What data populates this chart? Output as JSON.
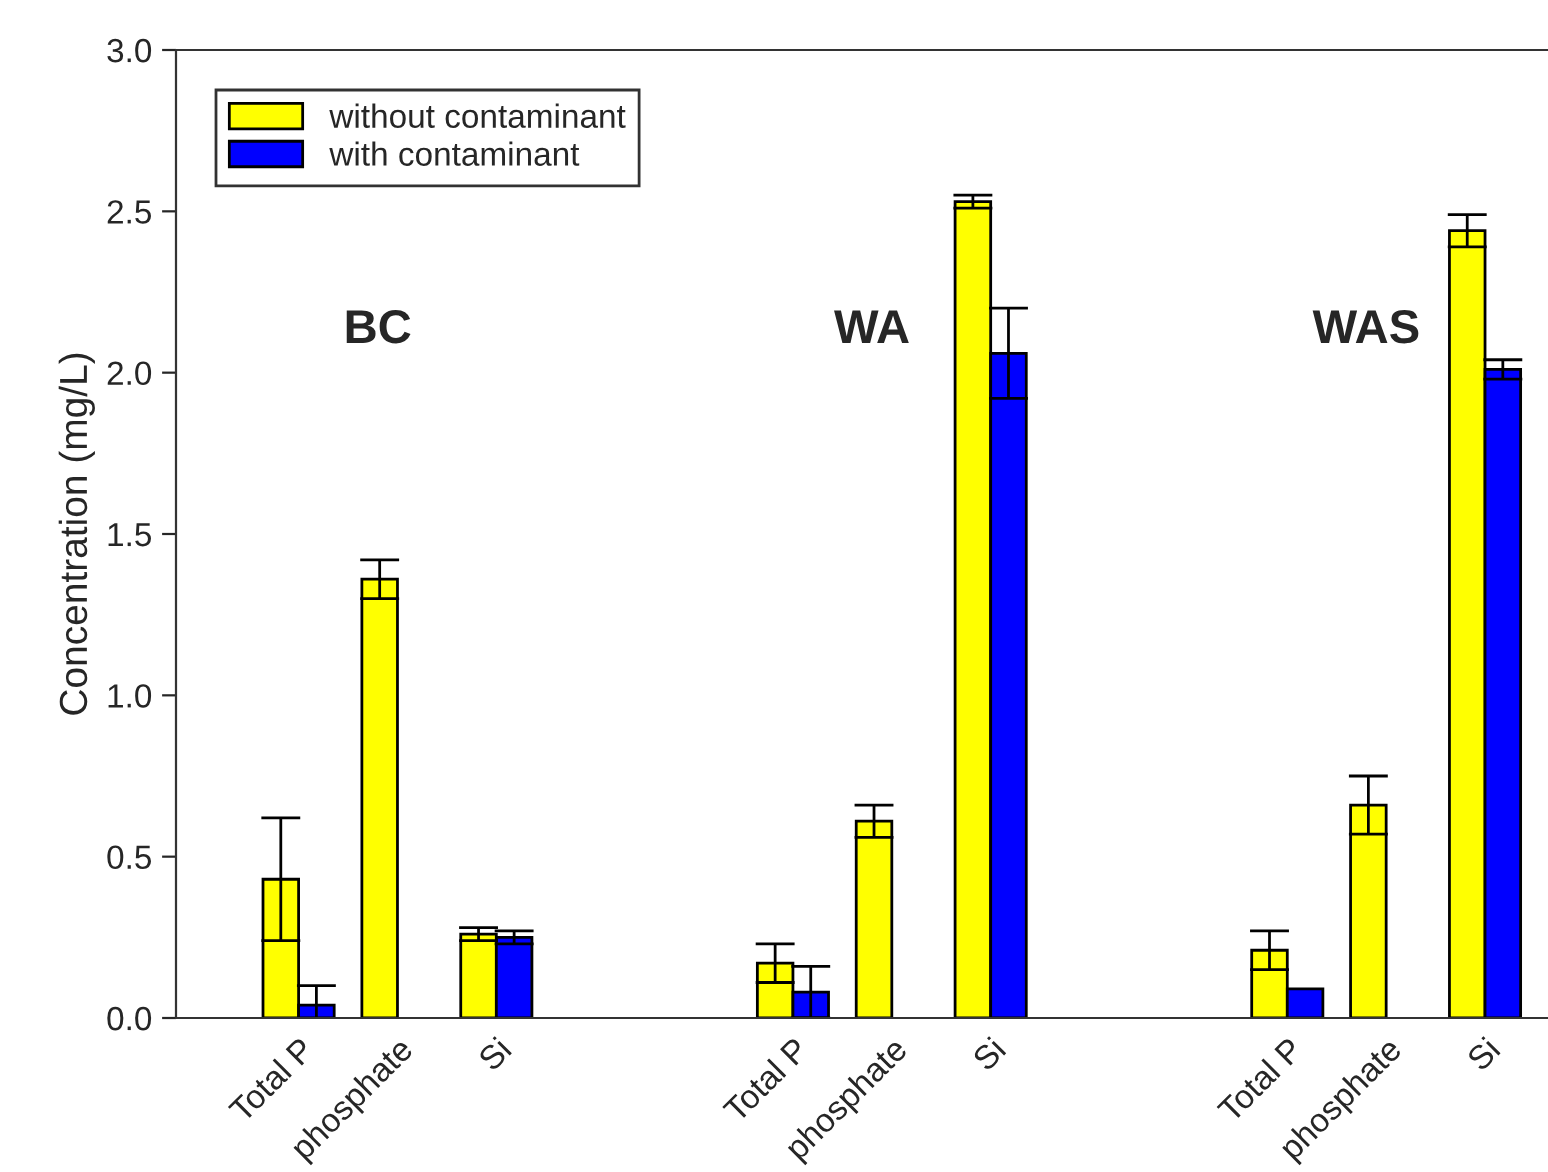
{
  "chart_data": {
    "type": "bar",
    "ylabel": "Concentration (mg/L)",
    "categories": [
      "Total P",
      "phosphate",
      "Si",
      null,
      null,
      "Total P",
      "phosphate",
      "Si",
      null,
      null,
      "Total P",
      "phosphate",
      "Si"
    ],
    "series": [
      {
        "name": "without contaminant",
        "color": "#ffff00",
        "values": [
          0.43,
          1.36,
          0.26,
          null,
          null,
          0.17,
          0.61,
          2.53,
          null,
          null,
          0.21,
          0.66,
          2.44
        ],
        "errors": [
          0.19,
          0.06,
          0.02,
          null,
          null,
          0.06,
          0.05,
          0.02,
          null,
          null,
          0.06,
          0.09,
          0.05
        ]
      },
      {
        "name": "with contaminant",
        "color": "#0000ff",
        "values": [
          0.04,
          null,
          0.25,
          null,
          null,
          0.08,
          null,
          2.06,
          null,
          null,
          0.09,
          null,
          2.01
        ],
        "errors": [
          0.06,
          null,
          0.02,
          null,
          null,
          0.08,
          null,
          0.14,
          null,
          null,
          null,
          null,
          0.03
        ]
      }
    ],
    "annotations": [
      "BC",
      "WA",
      "WAS"
    ],
    "ylim": [
      0,
      3.0
    ],
    "yticks": [
      {
        "value": 0,
        "label": "0.0"
      },
      {
        "value": 0.5,
        "label": "0.5"
      },
      {
        "value": 1.0,
        "label": "1.0"
      },
      {
        "value": 1.5,
        "label": "1.5"
      },
      {
        "value": 2.0,
        "label": "2.0"
      },
      {
        "value": 2.5,
        "label": "2.5"
      },
      {
        "value": 3.0,
        "label": "3.0"
      }
    ],
    "legend": "top left",
    "grid": false
  }
}
